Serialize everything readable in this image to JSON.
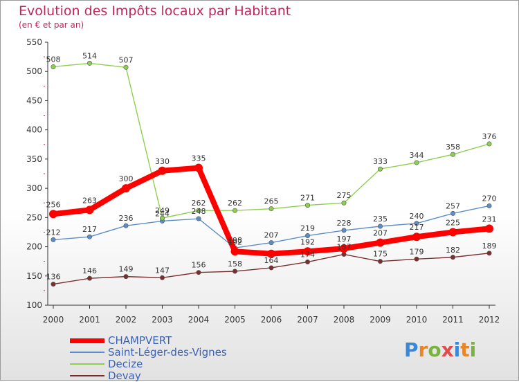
{
  "title": "Evolution des Impôts locaux par Habitant",
  "subtitle": "(en € et par an)",
  "logo": {
    "text": "Proxiti",
    "letter_colors": [
      "#3a87d8",
      "#e8862a",
      "#7bb23e",
      "#e34a4a",
      "#3a87d8",
      "#e8862a",
      "#7bb23e"
    ]
  },
  "chart_data": {
    "type": "line",
    "title": "Evolution des Impôts locaux par Habitant",
    "subtitle": "(en € et par an)",
    "xlabel": "",
    "ylabel": "",
    "x": [
      "2000",
      "2001",
      "2002",
      "2003",
      "2004",
      "2005",
      "2006",
      "2007",
      "2008",
      "2009",
      "2010",
      "2011",
      "2012"
    ],
    "ylim": [
      100,
      550
    ],
    "yticks": [
      "100",
      "150",
      "200",
      "250",
      "300",
      "350",
      "400",
      "450",
      "500",
      "550"
    ],
    "grid": false,
    "legend_position": "bottom-left",
    "series": [
      {
        "name": "Saint-Léger-des-Vignes",
        "color": "#5b8ec7",
        "values": [
          212,
          217,
          236,
          244,
          248,
          198,
          207,
          219,
          228,
          235,
          240,
          257,
          270
        ],
        "labels": [
          "212",
          "217",
          "236",
          "244",
          "248",
          "198",
          "207",
          "219",
          "228",
          "235",
          "240",
          "257",
          "270"
        ]
      },
      {
        "name": "Decize",
        "color": "#8dcf4f",
        "values": [
          508,
          514,
          507,
          249,
          262,
          262,
          265,
          271,
          275,
          333,
          344,
          358,
          376
        ],
        "labels": [
          "508",
          "514",
          "507",
          "249",
          "262",
          "262",
          "265",
          "271",
          "275",
          "333",
          "344",
          "358",
          "376"
        ]
      },
      {
        "name": "Devay",
        "color": "#7a2e2e",
        "values": [
          136,
          146,
          149,
          147,
          156,
          158,
          164,
          174,
          187,
          175,
          179,
          182,
          189
        ],
        "labels": [
          "136",
          "146",
          "149",
          "147",
          "156",
          "158",
          "164",
          "174",
          "187",
          "175",
          "179",
          "182",
          "189"
        ]
      },
      {
        "name": "CHAMPVERT",
        "color": "#ff0000",
        "values": [
          256,
          263,
          300,
          330,
          335,
          192,
          188,
          192,
          197,
          207,
          217,
          225,
          231
        ],
        "labels": [
          "256",
          "263",
          "300",
          "330",
          "335",
          "192",
          "",
          "192",
          "197",
          "207",
          "217",
          "225",
          "231"
        ]
      }
    ],
    "legend_order": [
      "CHAMPVERT",
      "Saint-Léger-des-Vignes",
      "Decize",
      "Devay"
    ]
  }
}
